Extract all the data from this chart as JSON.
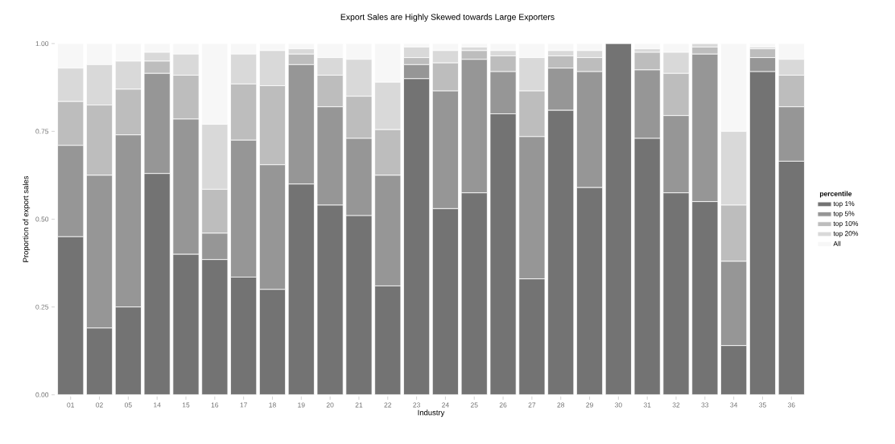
{
  "chart_data": {
    "type": "bar",
    "stacked": true,
    "title": "Export Sales are Highly Skewed towards Large Exporters",
    "xlabel": "Industry",
    "ylabel": "Proportion of export sales",
    "legend_title": "percentile",
    "legend": "right",
    "categories": [
      "01",
      "02",
      "05",
      "14",
      "15",
      "16",
      "17",
      "18",
      "19",
      "20",
      "21",
      "22",
      "23",
      "24",
      "25",
      "26",
      "27",
      "28",
      "29",
      "30",
      "31",
      "32",
      "33",
      "34",
      "35",
      "36"
    ],
    "ylim": [
      0,
      1
    ],
    "yticks": [
      {
        "value": 0,
        "label": "0.00"
      },
      {
        "value": 0.25,
        "label": "0.25"
      },
      {
        "value": 0.5,
        "label": "0.50"
      },
      {
        "value": 0.75,
        "label": "0.75"
      },
      {
        "value": 1,
        "label": "1.00"
      }
    ],
    "series": [
      {
        "name": "top 1%",
        "color": "#737373",
        "values": [
          0.45,
          0.19,
          0.25,
          0.63,
          0.4,
          0.385,
          0.335,
          0.3,
          0.6,
          0.54,
          0.51,
          0.31,
          0.9,
          0.53,
          0.575,
          0.8,
          0.33,
          0.81,
          0.59,
          1.0,
          0.73,
          0.575,
          0.55,
          0.14,
          0.92,
          0.665
        ]
      },
      {
        "name": "top 5%",
        "color": "#969696",
        "values": [
          0.26,
          0.435,
          0.49,
          0.285,
          0.385,
          0.075,
          0.39,
          0.355,
          0.34,
          0.28,
          0.22,
          0.315,
          0.04,
          0.335,
          0.38,
          0.12,
          0.405,
          0.12,
          0.33,
          0,
          0.195,
          0.22,
          0.42,
          0.24,
          0.04,
          0.155
        ]
      },
      {
        "name": "top 10%",
        "color": "#bdbdbd",
        "values": [
          0.125,
          0.2,
          0.13,
          0.035,
          0.125,
          0.125,
          0.16,
          0.225,
          0.03,
          0.09,
          0.12,
          0.13,
          0.02,
          0.08,
          0.025,
          0.045,
          0.13,
          0.035,
          0.04,
          0,
          0.05,
          0.12,
          0.02,
          0.16,
          0.025,
          0.09
        ]
      },
      {
        "name": "top 20%",
        "color": "#d9d9d9",
        "values": [
          0.095,
          0.115,
          0.08,
          0.025,
          0.06,
          0.185,
          0.085,
          0.1,
          0.015,
          0.05,
          0.105,
          0.135,
          0.03,
          0.035,
          0.01,
          0.015,
          0.095,
          0.015,
          0.02,
          0,
          0.01,
          0.06,
          0.01,
          0.21,
          0.005,
          0.045
        ]
      },
      {
        "name": "All",
        "color": "#f7f7f7",
        "values": [
          0.07,
          0.06,
          0.05,
          0.025,
          0.03,
          0.23,
          0.03,
          0.02,
          0.015,
          0.04,
          0.045,
          0.11,
          0.01,
          0.02,
          0.01,
          0.02,
          0.04,
          0.02,
          0.02,
          0,
          0.015,
          0.025,
          0,
          0.25,
          0.01,
          0.045
        ]
      }
    ]
  }
}
